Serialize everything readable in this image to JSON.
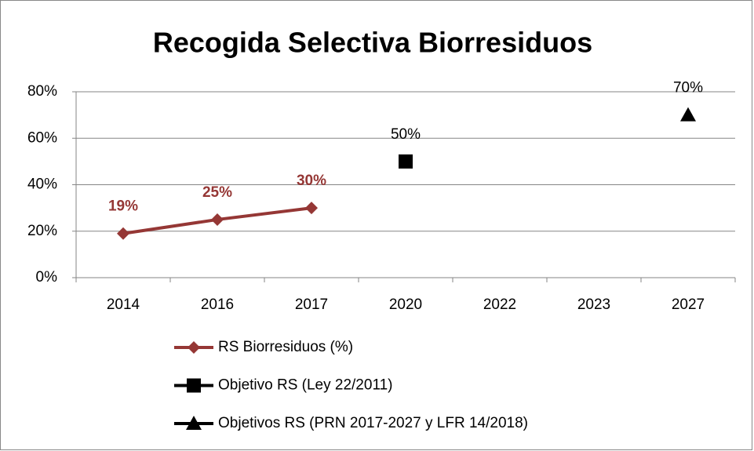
{
  "chart_data": {
    "type": "line",
    "title": "Recogida Selectiva Biorresiduos",
    "categories": [
      "2014",
      "2016",
      "2017",
      "2020",
      "2022",
      "2023",
      "2027"
    ],
    "series": [
      {
        "name": "RS Biorresiduos (%)",
        "color": "#953735",
        "marker": "diamond",
        "values": [
          19,
          25,
          30,
          null,
          null,
          null,
          null
        ],
        "value_labels": [
          "19%",
          "25%",
          "30%",
          null,
          null,
          null,
          null
        ]
      },
      {
        "name": "Objetivo RS (Ley 22/2011)",
        "color": "#000000",
        "marker": "square",
        "values": [
          null,
          null,
          null,
          50,
          null,
          null,
          null
        ],
        "value_labels": [
          null,
          null,
          null,
          "50%",
          null,
          null,
          null
        ]
      },
      {
        "name": "Objetivos RS (PRN 2017-2027 y LFR 14/2018)",
        "color": "#000000",
        "marker": "triangle",
        "values": [
          null,
          null,
          null,
          null,
          null,
          null,
          70
        ],
        "value_labels": [
          null,
          null,
          null,
          null,
          null,
          null,
          "70%"
        ]
      }
    ],
    "ylim": [
      0,
      80
    ],
    "yticks": [
      {
        "value": 0,
        "label": "0%"
      },
      {
        "value": 20,
        "label": "20%"
      },
      {
        "value": 40,
        "label": "40%"
      },
      {
        "value": 60,
        "label": "60%"
      },
      {
        "value": 80,
        "label": "80%"
      }
    ],
    "grid": true
  }
}
